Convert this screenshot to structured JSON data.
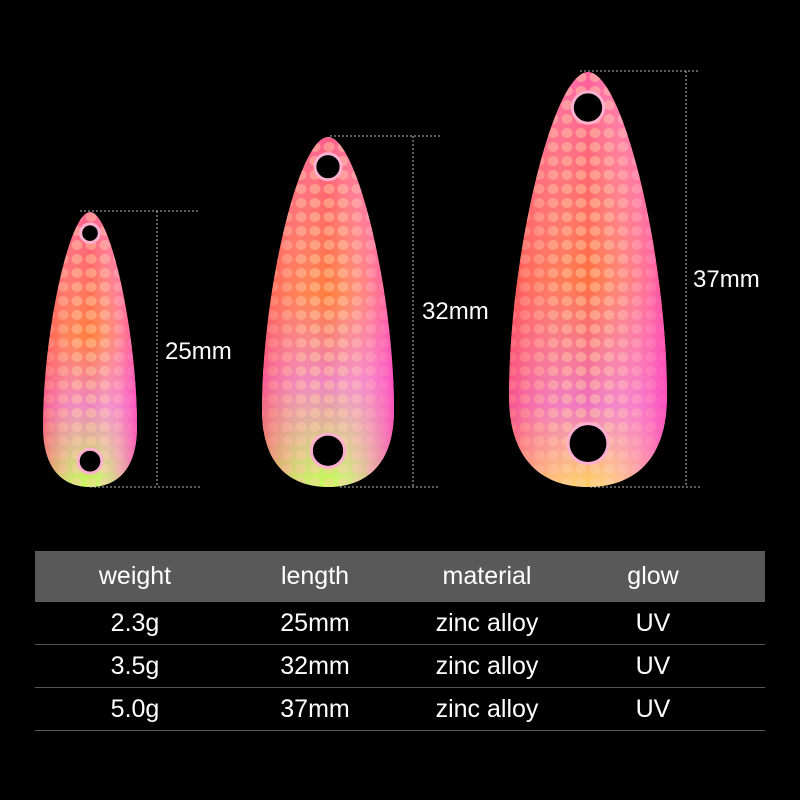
{
  "dimensions": [
    "25mm",
    "32mm",
    "37mm"
  ],
  "table": {
    "headers": [
      "weight",
      "length",
      "material",
      "glow"
    ],
    "rows": [
      [
        "2.3g",
        "25mm",
        "zinc alloy",
        "UV"
      ],
      [
        "3.5g",
        "32mm",
        "zinc alloy",
        "UV"
      ],
      [
        "5.0g",
        "37mm",
        "zinc alloy",
        "UV"
      ]
    ]
  },
  "colors": {
    "background": "#000000",
    "header_bg": "#595959",
    "spoon_pink": "#f060b0",
    "spoon_orange": "#ff6a2a",
    "spoon_green": "#b8ff40"
  }
}
